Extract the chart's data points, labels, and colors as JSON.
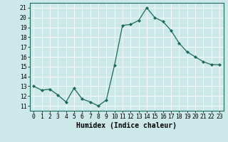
{
  "x": [
    0,
    1,
    2,
    3,
    4,
    5,
    6,
    7,
    8,
    9,
    10,
    11,
    12,
    13,
    14,
    15,
    16,
    17,
    18,
    19,
    20,
    21,
    22,
    23
  ],
  "y": [
    13,
    12.6,
    12.7,
    12.1,
    11.4,
    12.8,
    11.7,
    11.4,
    11.0,
    11.6,
    15.1,
    19.2,
    19.3,
    19.7,
    21.0,
    20.0,
    19.6,
    18.7,
    17.4,
    16.5,
    16.0,
    15.5,
    15.2,
    15.2
  ],
  "xlabel": "Humidex (Indice chaleur)",
  "xlim": [
    -0.5,
    23.5
  ],
  "ylim": [
    10.5,
    21.5
  ],
  "yticks": [
    11,
    12,
    13,
    14,
    15,
    16,
    17,
    18,
    19,
    20,
    21
  ],
  "xticks": [
    0,
    1,
    2,
    3,
    4,
    5,
    6,
    7,
    8,
    9,
    10,
    11,
    12,
    13,
    14,
    15,
    16,
    17,
    18,
    19,
    20,
    21,
    22,
    23
  ],
  "line_color": "#1a6b5a",
  "marker": "D",
  "marker_size": 2.0,
  "bg_color": "#cce8e8",
  "grid_color": "#ffffff",
  "axis_label_fontsize": 6.5,
  "tick_fontsize": 5.8,
  "xlabel_fontsize": 7.0
}
